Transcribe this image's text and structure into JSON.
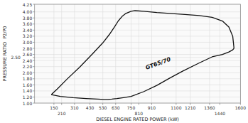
{
  "chart_data": {
    "type": "line",
    "xlabel": "DIESEL ENGINE RATED POWER (kW)",
    "ylabel": "PRESSURE RATIO  P2/P0",
    "xlim": [
      0,
      1600
    ],
    "ylim": [
      1.0,
      4.25
    ],
    "xticks": [
      150,
      210,
      310,
      430,
      530,
      630,
      750,
      810,
      910,
      1100,
      1210,
      1360,
      1440,
      1600
    ],
    "yticks": [
      {
        "value": 1.0,
        "label": "1.00"
      },
      {
        "value": 1.2,
        "label": "1.20"
      },
      {
        "value": 1.4,
        "label": "1.40"
      },
      {
        "value": 1.6,
        "label": "1.60"
      },
      {
        "value": 1.8,
        "label": "1.80"
      },
      {
        "value": 2.0,
        "label": "2.00"
      },
      {
        "value": 2.2,
        "label": "2.20"
      },
      {
        "value": 2.4,
        "label": "2.40"
      },
      {
        "value": 2.5,
        "label": "2.50"
      },
      {
        "value": 2.6,
        "label": "2.60"
      },
      {
        "value": 2.8,
        "label": "2.80"
      },
      {
        "value": 3.0,
        "label": "3.00"
      },
      {
        "value": 3.2,
        "label": "3.20"
      },
      {
        "value": 3.4,
        "label": "3.40"
      },
      {
        "value": 3.6,
        "label": "3.60"
      },
      {
        "value": 3.8,
        "label": "3.80"
      },
      {
        "value": 4.0,
        "label": "4.00"
      },
      4.25
    ],
    "grid": true,
    "series": [
      {
        "color": "#111111",
        "x": [
          130,
          180,
          250,
          350,
          450,
          530,
          580,
          620,
          650,
          680,
          710,
          750,
          780,
          850,
          950,
          1050,
          1150,
          1280,
          1380,
          1460,
          1510,
          1540,
          1550
        ],
        "values": [
          1.28,
          1.48,
          1.78,
          2.18,
          2.62,
          2.98,
          3.25,
          3.5,
          3.7,
          3.85,
          3.95,
          4.02,
          4.04,
          4.02,
          3.98,
          3.95,
          3.92,
          3.88,
          3.82,
          3.7,
          3.5,
          3.2,
          2.8
        ]
      },
      {
        "color": "#111111",
        "x": [
          130,
          200,
          300,
          400,
          490,
          540,
          570,
          600,
          640,
          690,
          750,
          850,
          950,
          1050,
          1150,
          1280,
          1380,
          1460,
          1510,
          1540,
          1550
        ],
        "values": [
          1.28,
          1.22,
          1.18,
          1.15,
          1.13,
          1.12,
          1.12,
          1.13,
          1.15,
          1.18,
          1.22,
          1.38,
          1.58,
          1.82,
          2.05,
          2.32,
          2.52,
          2.6,
          2.68,
          2.75,
          2.8
        ]
      }
    ],
    "annotations": [
      {
        "text": "GT65/70",
        "x": 960,
        "y": 2.3,
        "color": "#111111"
      }
    ]
  }
}
